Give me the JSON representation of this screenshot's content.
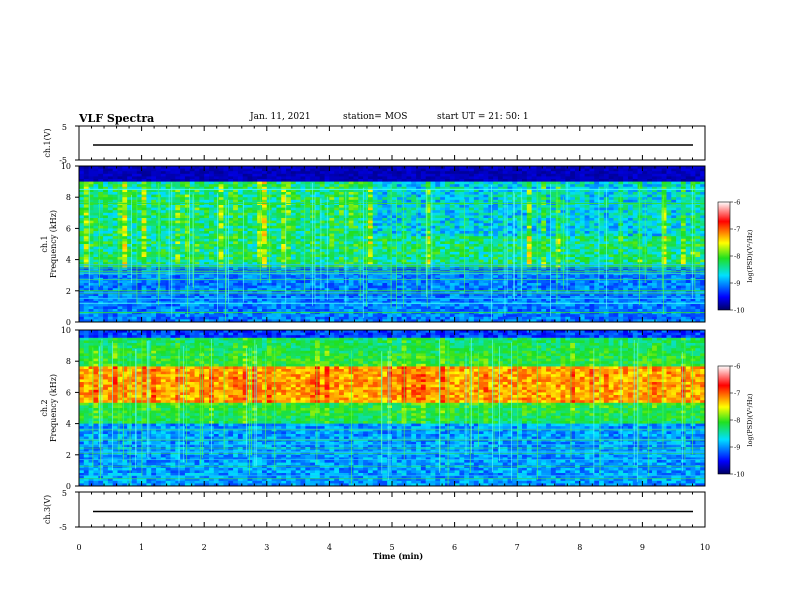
{
  "header": {
    "title": "VLF Spectra",
    "date": "Jan. 11, 2021",
    "station": "station= MOS",
    "start_ut": "start  UT  =   21: 50: 1"
  },
  "chart_data": [
    {
      "type": "line",
      "panel": "waveform-ch1",
      "ylabel": "ch.1(V)",
      "yticks": [
        "5",
        "-5"
      ],
      "ylim": [
        -5,
        5
      ],
      "trace_level": 0,
      "x_range": [
        0,
        10
      ],
      "grid": false
    },
    {
      "type": "heatmap",
      "panel": "spectrogram-ch1",
      "ylabel": "Frequency (kHz)",
      "channel_label": "ch.1",
      "ylim": [
        0,
        10
      ],
      "yticks": [
        "0",
        "2",
        "4",
        "6",
        "8",
        "10"
      ],
      "x_range": [
        0,
        10
      ],
      "colorbar": {
        "label": "log(PSD)(V²/Hz)",
        "ticks": [
          "-6",
          "-7",
          "-8",
          "-9",
          "-10"
        ],
        "range": [
          -10,
          -6
        ],
        "colors": [
          "#000060",
          "#0000ff",
          "#00e0ff",
          "#20e020",
          "#ffff00",
          "#ff0000",
          "#ffffff"
        ]
      },
      "features": {
        "active_band_kHz": [
          3.5,
          9.0
        ],
        "upper_cutoff_kHz": 9.0,
        "strong_lines_kHz": [
          8.5,
          7.6,
          3.1,
          2.0,
          1.2,
          0.6
        ]
      }
    },
    {
      "type": "heatmap",
      "panel": "spectrogram-ch2",
      "ylabel": "Frequency (kHz)",
      "channel_label": "ch.2",
      "ylim": [
        0,
        10
      ],
      "yticks": [
        "0",
        "2",
        "4",
        "6",
        "8",
        "10"
      ],
      "x_range": [
        0,
        10
      ],
      "colorbar": {
        "label": "log(PSD)(V²/Hz)",
        "ticks": [
          "-6",
          "-7",
          "-8",
          "-9",
          "-10"
        ],
        "range": [
          -10,
          -6
        ]
      },
      "features": {
        "peak_band_kHz": [
          5.5,
          7.5
        ],
        "active_band_kHz": [
          4.0,
          9.5
        ]
      }
    },
    {
      "type": "line",
      "panel": "waveform-ch3",
      "ylabel": "ch.3(V)",
      "yticks": [
        "5",
        "-5"
      ],
      "ylim": [
        -5,
        5
      ],
      "trace_level": 0,
      "x_range": [
        0,
        10
      ],
      "grid": false
    }
  ],
  "x_axis": {
    "label": "Time  (min)",
    "ticks": [
      "0",
      "1",
      "2",
      "3",
      "4",
      "5",
      "6",
      "7",
      "8",
      "9",
      "10"
    ],
    "range": [
      0,
      10
    ]
  }
}
